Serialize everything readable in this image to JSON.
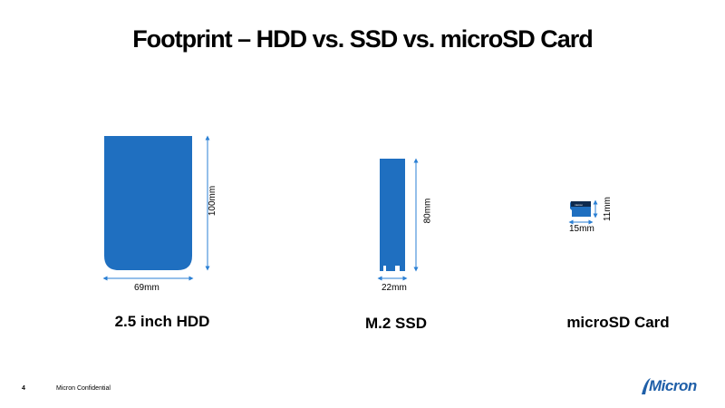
{
  "title": "Footprint – HDD vs. SSD vs. microSD Card",
  "devices": {
    "hdd": {
      "label": "2.5 inch HDD",
      "width_label": "69mm",
      "height_label": "100mm"
    },
    "ssd": {
      "label": "M.2 SSD",
      "width_label": "22mm",
      "height_label": "80mm"
    },
    "microsd": {
      "label": "microSD Card",
      "width_label": "15mm",
      "height_label": "11mm"
    }
  },
  "footer": {
    "page_number": "4",
    "confidential": "Micron  Confidential"
  },
  "logo": {
    "text": "Micron",
    "color": "#1f5fa8"
  },
  "colors": {
    "device_fill": "#1f6fc0",
    "arrow": "#2a7fd4"
  }
}
